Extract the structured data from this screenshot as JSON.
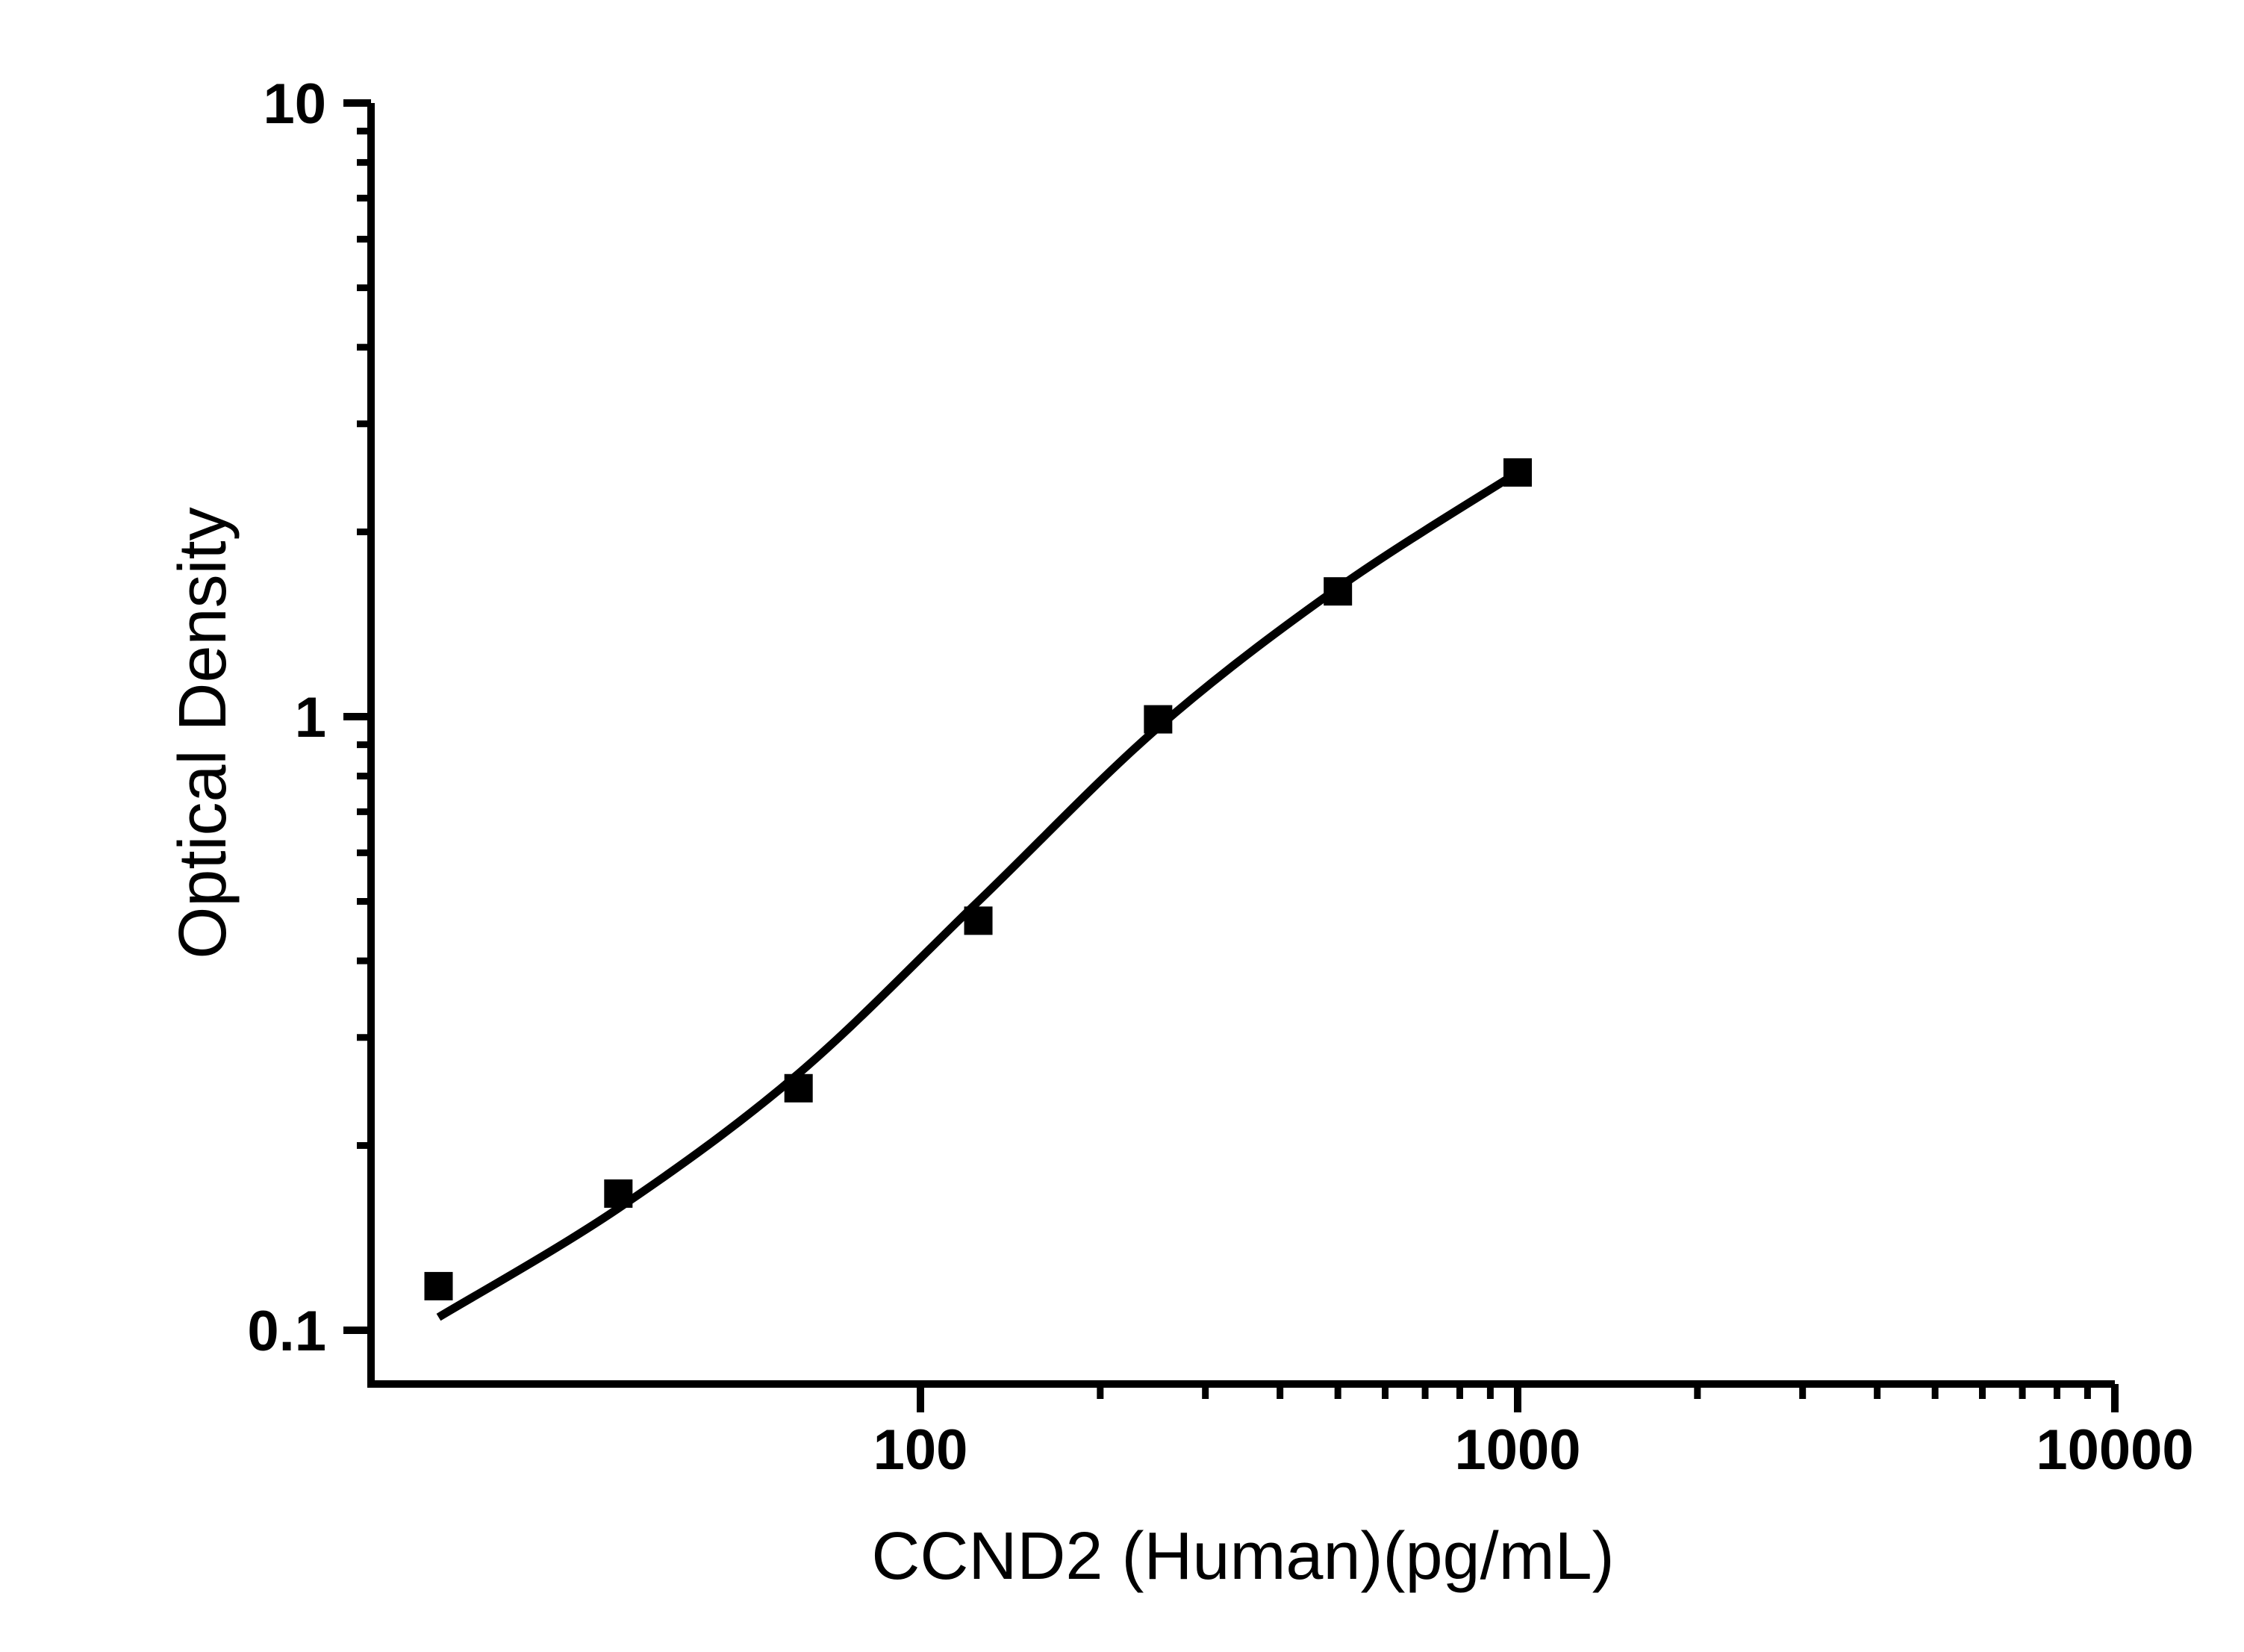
{
  "figure": {
    "background": "#ffffff",
    "ink_color": "#000000"
  },
  "chart_data": {
    "type": "scatter",
    "title": "",
    "xlabel": "CCND2 (Human)(pg/mL)",
    "ylabel": "Optical Density",
    "grid": false,
    "legend": null,
    "x_axis": {
      "scale": "log",
      "range": [
        11.8,
        10000
      ],
      "major_ticks": [
        100,
        1000,
        10000
      ],
      "major_tick_labels": [
        "100",
        "1000",
        "10000"
      ],
      "minor_ticks": [
        200,
        300,
        400,
        500,
        600,
        700,
        800,
        900,
        2000,
        3000,
        4000,
        5000,
        6000,
        7000,
        8000,
        9000
      ]
    },
    "y_axis": {
      "scale": "log",
      "range": [
        0.082,
        10
      ],
      "major_ticks": [
        10,
        1,
        0.1
      ],
      "major_tick_labels": [
        "10",
        "1",
        "0.1"
      ],
      "minor_ticks": [
        9,
        8,
        7,
        6,
        5,
        4,
        3,
        2,
        0.9,
        0.8,
        0.7,
        0.6,
        0.5,
        0.4,
        0.3,
        0.2
      ]
    },
    "series": [
      {
        "name": "standard-points",
        "kind": "scatter",
        "marker": "filled-square",
        "color": "#000000",
        "x": [
          15.6,
          31.2,
          62.5,
          125,
          250,
          500,
          1000
        ],
        "y": [
          0.118,
          0.167,
          0.248,
          0.465,
          0.99,
          1.6,
          2.5
        ]
      },
      {
        "name": "fit-curve",
        "kind": "line",
        "color": "#000000",
        "x": [
          15.6,
          31.2,
          62.5,
          125,
          250,
          500,
          1000
        ],
        "y": [
          0.105,
          0.158,
          0.262,
          0.5,
          0.96,
          1.62,
          2.5
        ]
      }
    ]
  }
}
